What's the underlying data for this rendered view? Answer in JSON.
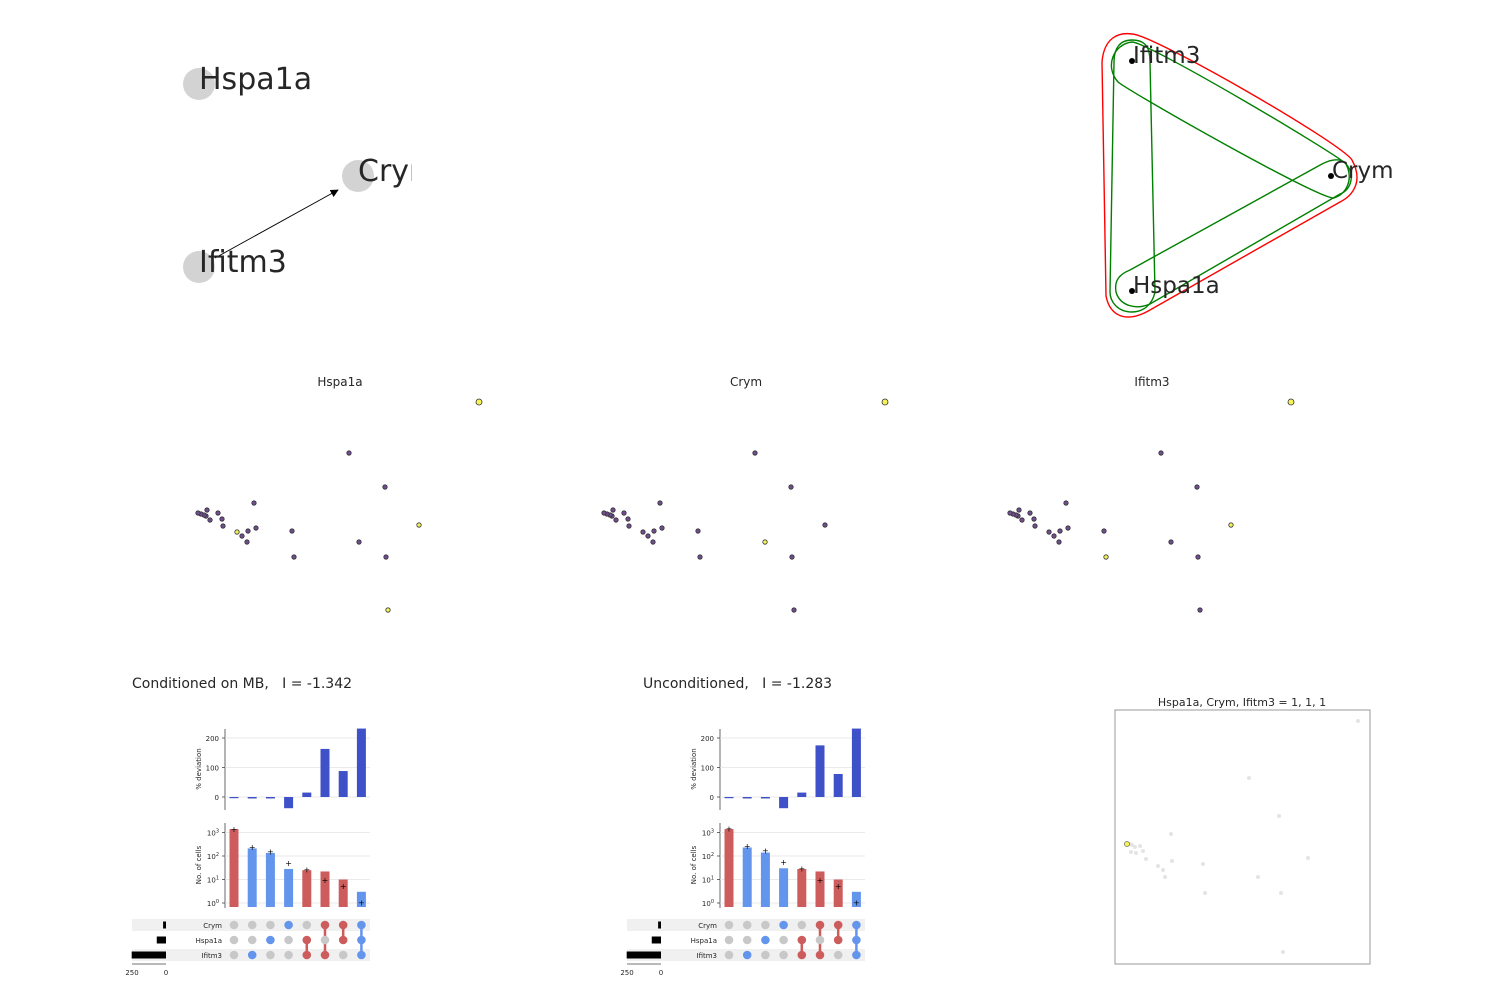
{
  "network": {
    "nodes": [
      "Hspa1a",
      "Crym",
      "Ifitm3"
    ],
    "edges": [
      {
        "from": "Ifitm3",
        "to": "Crym"
      }
    ],
    "node_color": "#d3d3d3"
  },
  "hypergraph": {
    "nodes": [
      "Ifitm3",
      "Crym",
      "Hspa1a"
    ],
    "pair_edge_color": "#008000",
    "triple_edge_color": "#ff0000"
  },
  "embeddings": {
    "titles": [
      "Hspa1a",
      "Crym",
      "Ifitm3"
    ],
    "low_color": "#6f4d8f",
    "high_color": "#f5f25a"
  },
  "upset_panels": [
    {
      "title": "Conditioned on MB,   I = -1.342",
      "deviation": [
        -1,
        -5,
        -5,
        -38,
        15,
        163,
        88,
        232
      ],
      "counts": [
        1400,
        210,
        135,
        28,
        25,
        22,
        10,
        3
      ],
      "expected": [
        1350,
        230,
        150,
        48,
        25,
        9,
        5,
        1
      ],
      "colors": [
        "red",
        "blue",
        "blue",
        "blue",
        "red",
        "red",
        "red",
        "blue"
      ],
      "membership": [
        [
          0,
          0,
          0
        ],
        [
          0,
          0,
          1
        ],
        [
          0,
          1,
          0
        ],
        [
          1,
          0,
          0
        ],
        [
          0,
          1,
          1
        ],
        [
          1,
          0,
          1
        ],
        [
          1,
          1,
          0
        ],
        [
          1,
          1,
          1
        ]
      ],
      "set_sizes": [
        22,
        70,
        260
      ]
    },
    {
      "title": "Unconditioned,   I = -1.283",
      "deviation": [
        -1,
        -5,
        -5,
        -38,
        15,
        175,
        78,
        232
      ],
      "counts": [
        1400,
        230,
        140,
        30,
        28,
        22,
        10,
        3
      ],
      "expected": [
        1380,
        250,
        160,
        52,
        28,
        9,
        5,
        1
      ],
      "colors": [
        "red",
        "blue",
        "blue",
        "blue",
        "red",
        "red",
        "red",
        "blue"
      ],
      "membership": [
        [
          0,
          0,
          0
        ],
        [
          0,
          0,
          1
        ],
        [
          0,
          1,
          0
        ],
        [
          1,
          0,
          0
        ],
        [
          0,
          1,
          1
        ],
        [
          1,
          0,
          1
        ],
        [
          1,
          1,
          0
        ],
        [
          1,
          1,
          1
        ]
      ],
      "set_sizes": [
        22,
        70,
        260
      ]
    }
  ],
  "upset_labels": {
    "ylabel_top": "% deviation",
    "ylabel_bottom": "No. of cells",
    "sets": [
      "Crym",
      "Hspa1a",
      "Ifitm3"
    ],
    "deviation_ticks": [
      "200",
      "100",
      "0"
    ],
    "setsize_ticks": [
      "250",
      "0"
    ],
    "red": "#cd5c5c",
    "blue_bar": "#6495ed",
    "dev_bar": "#3f51c8",
    "grey_dot": "#c8c8c8"
  },
  "scatter_panel": {
    "title": "Hspa1a, Crym, Ifitm3 = 1, 1, 1"
  },
  "chart_data": [
    {
      "type": "bar",
      "title": "Conditioned on MB,   I = -1.342",
      "ylabel": "% deviation",
      "categories": [
        "none",
        "Ifitm3",
        "Hspa1a",
        "Crym",
        "Hspa1a+Ifitm3",
        "Crym+Ifitm3",
        "Crym+Hspa1a",
        "Crym+Hspa1a+Ifitm3"
      ],
      "values": [
        -1,
        -5,
        -5,
        -38,
        15,
        163,
        88,
        232
      ],
      "ylim": [
        -40,
        240
      ]
    },
    {
      "type": "bar",
      "title": "Unconditioned,   I = -1.283",
      "ylabel": "% deviation",
      "categories": [
        "none",
        "Ifitm3",
        "Hspa1a",
        "Crym",
        "Hspa1a+Ifitm3",
        "Crym+Ifitm3",
        "Crym+Hspa1a",
        "Crym+Hspa1a+Ifitm3"
      ],
      "values": [
        -1,
        -5,
        -5,
        -38,
        15,
        175,
        78,
        232
      ],
      "ylim": [
        -40,
        240
      ]
    }
  ]
}
